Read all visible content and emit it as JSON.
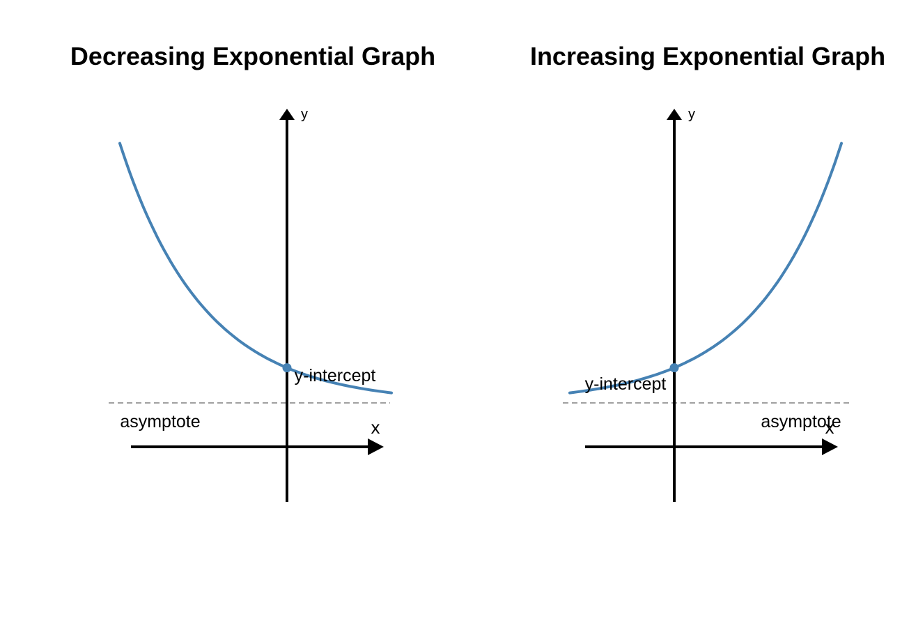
{
  "chart_data": [
    {
      "type": "line",
      "title": "Decreasing Exponential Graph",
      "xlabel": "x",
      "ylabel": "y",
      "series": [
        {
          "x": [
            -2.4,
            -2,
            -1.5,
            -1,
            -0.5,
            0,
            0.5,
            1,
            1.5
          ],
          "values": [
            13.3,
            10.2,
            7.3,
            5.0,
            3.3,
            1.8,
            1.0,
            0.6,
            0.3
          ]
        }
      ],
      "point": {
        "x": 0,
        "y": 1.8
      },
      "asymptote_y": 0,
      "annotations": {
        "point_label": "y-intercept",
        "asymptote_label": "asymptote"
      },
      "colors": {
        "curve": "#4682B4",
        "asymptote": "#808080",
        "axes": "#000000"
      }
    },
    {
      "type": "line",
      "title": "Increasing Exponential Graph",
      "xlabel": "x",
      "ylabel": "y",
      "series": [
        {
          "x": [
            -1.5,
            -1,
            -0.5,
            0,
            0.5,
            1,
            1.5,
            2,
            2.4
          ],
          "values": [
            0.3,
            0.6,
            1.0,
            1.8,
            3.3,
            5.0,
            7.3,
            10.2,
            13.3
          ]
        }
      ],
      "point": {
        "x": 0,
        "y": 1.8
      },
      "asymptote_y": 0,
      "annotations": {
        "point_label": "y-intercept",
        "asymptote_label": "asymptote"
      },
      "colors": {
        "curve": "#4682B4",
        "asymptote": "#808080",
        "axes": "#000000"
      }
    }
  ]
}
